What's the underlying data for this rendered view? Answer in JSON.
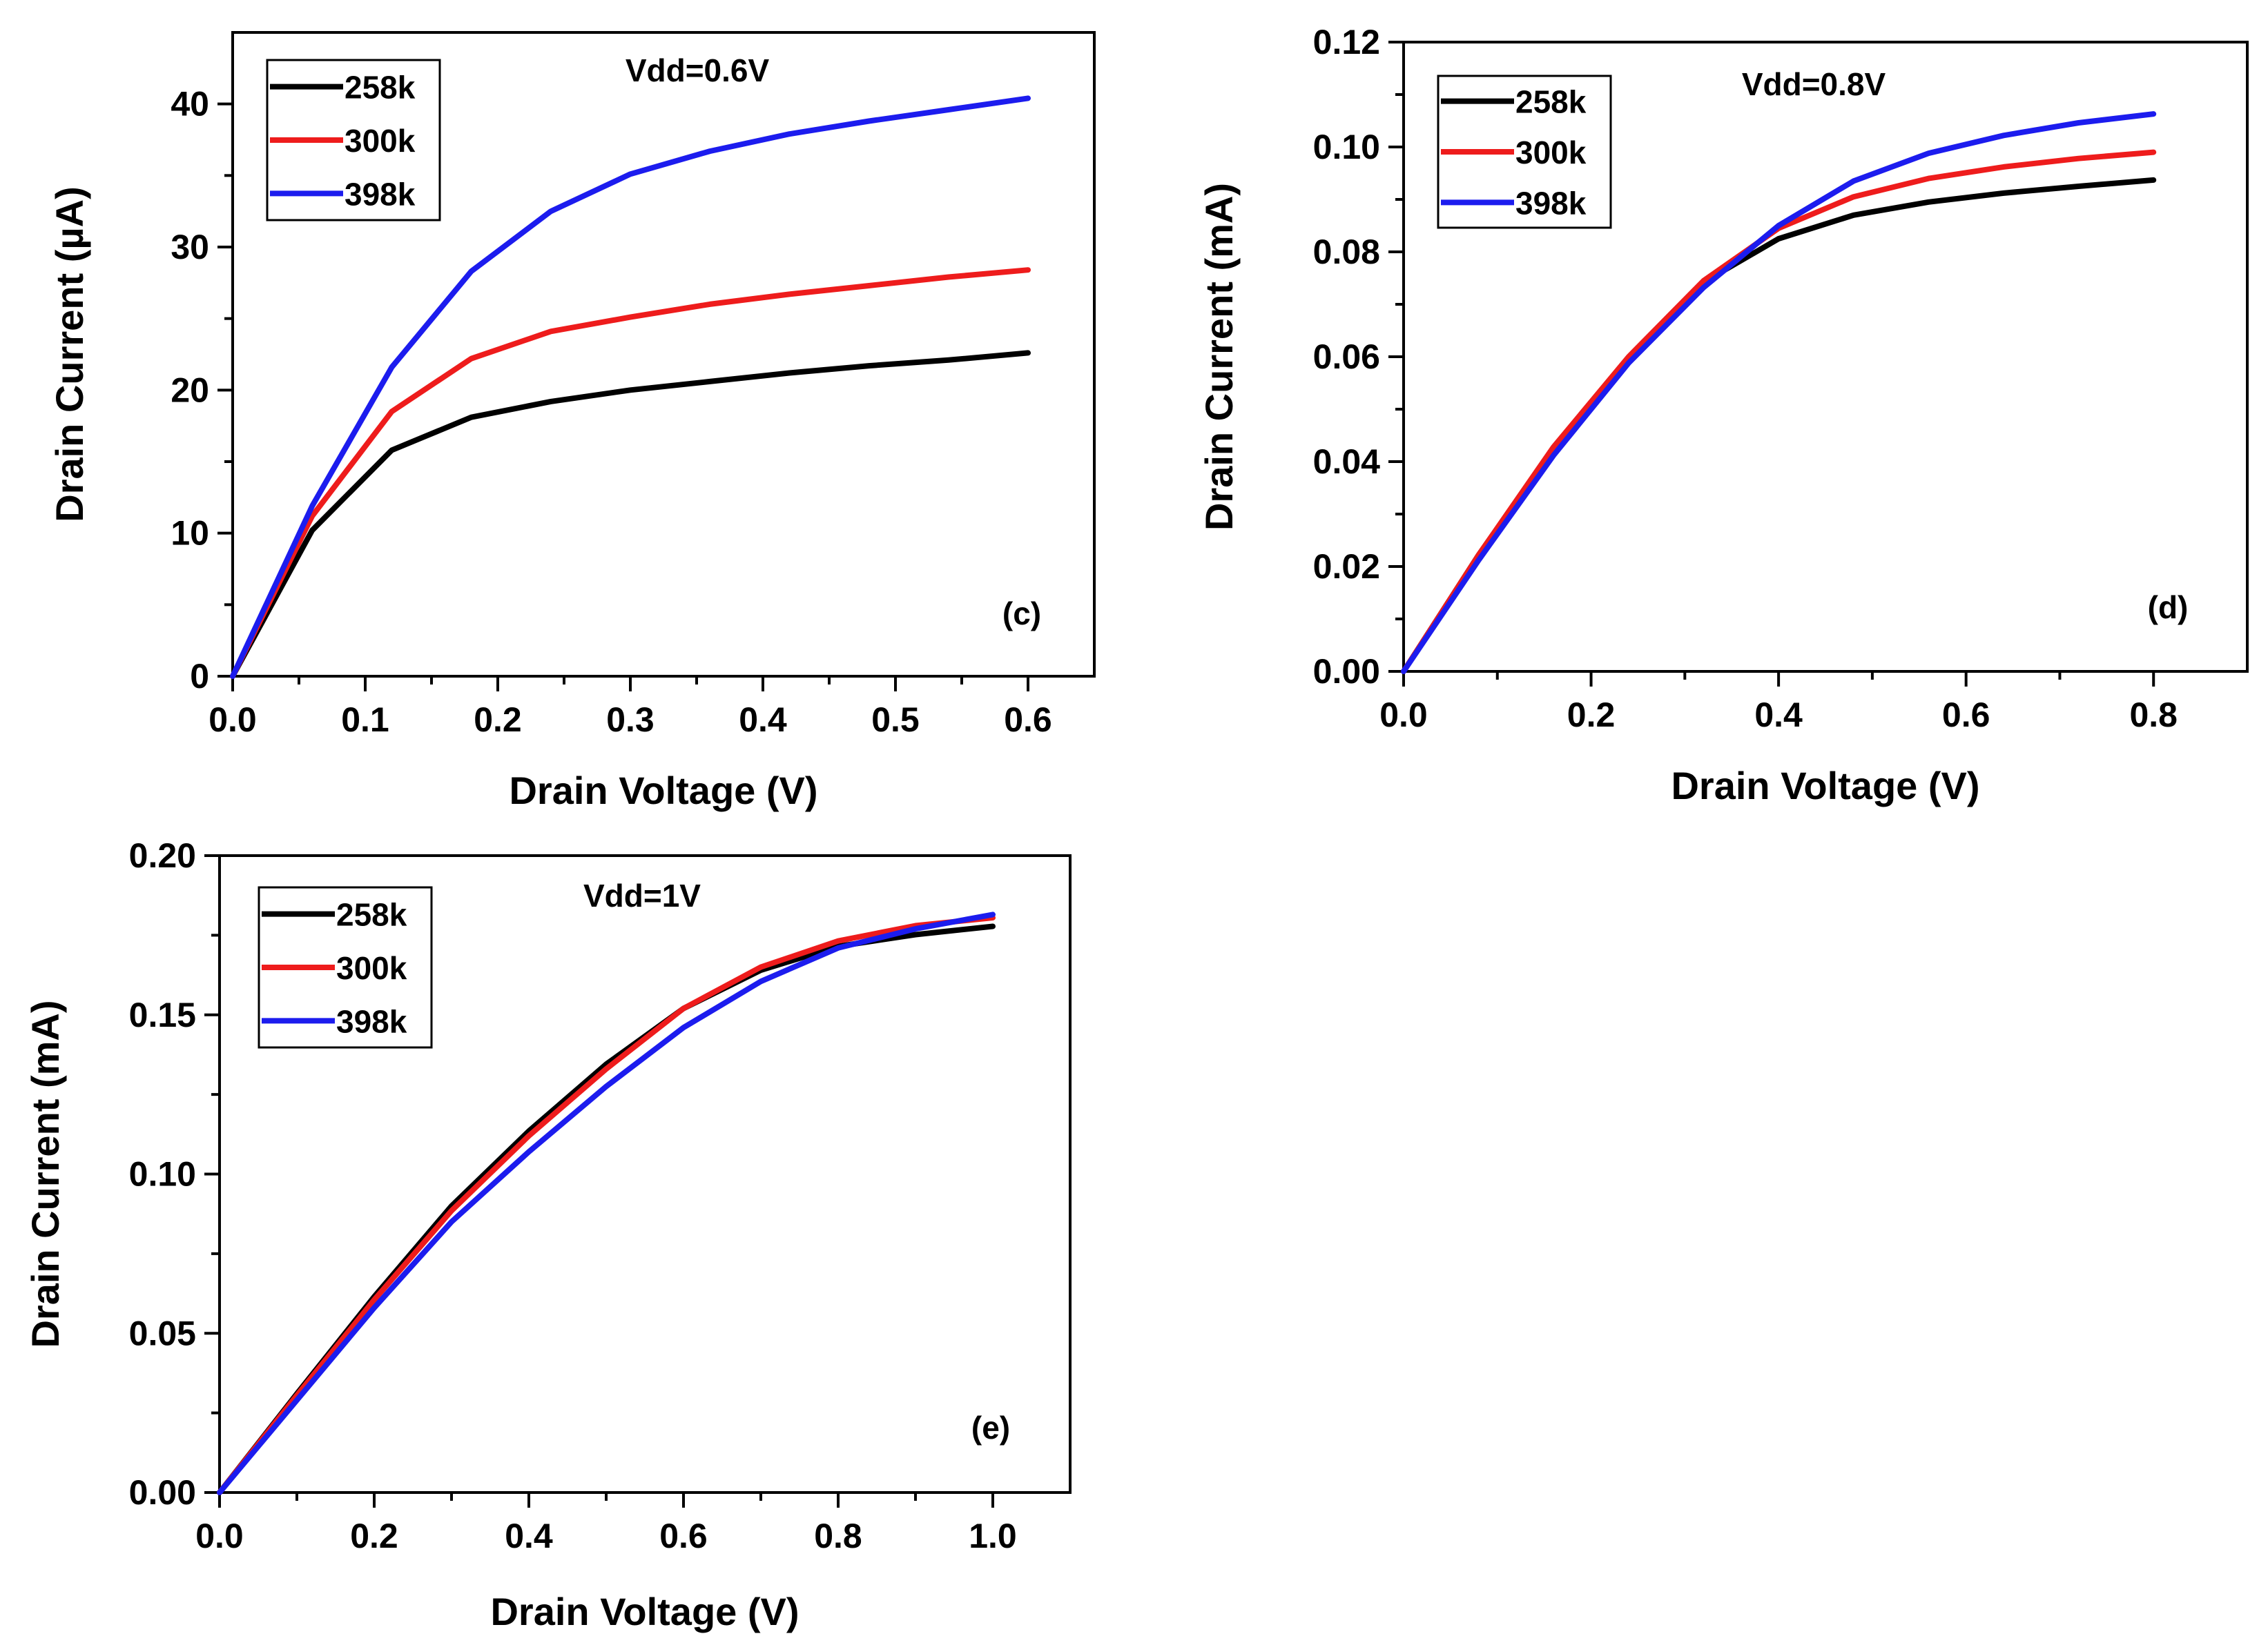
{
  "chart_data": [
    {
      "type": "line",
      "panel_label": "(c)",
      "annotation": "Vdd=0.6V",
      "xlabel": "Drain Voltage (V)",
      "ylabel": "Drain Current (µA)",
      "xlim": [
        0,
        0.65
      ],
      "ylim": [
        0,
        45
      ],
      "xticks": [
        0.0,
        0.1,
        0.2,
        0.3,
        0.4,
        0.5,
        0.6
      ],
      "xtick_labels": [
        "0.0",
        "0.1",
        "0.2",
        "0.3",
        "0.4",
        "0.5",
        "0.6"
      ],
      "yticks": [
        0,
        10,
        20,
        30,
        40
      ],
      "ytick_labels": [
        "0",
        "10",
        "20",
        "30",
        "40"
      ],
      "legend_position": "top-left",
      "grid": false,
      "series": [
        {
          "name": "258k",
          "color": "#000000",
          "x": [
            0,
            0.06,
            0.12,
            0.18,
            0.24,
            0.3,
            0.36,
            0.42,
            0.48,
            0.54,
            0.6
          ],
          "y": [
            0,
            10.2,
            15.8,
            18.1,
            19.2,
            20.0,
            20.6,
            21.2,
            21.7,
            22.1,
            22.6
          ]
        },
        {
          "name": "300k",
          "color": "#ee1c1c",
          "x": [
            0,
            0.06,
            0.12,
            0.18,
            0.24,
            0.3,
            0.36,
            0.42,
            0.48,
            0.54,
            0.6
          ],
          "y": [
            0,
            11.2,
            18.5,
            22.2,
            24.1,
            25.1,
            26.0,
            26.7,
            27.3,
            27.9,
            28.4
          ]
        },
        {
          "name": "398k",
          "color": "#1c1cee",
          "x": [
            0,
            0.06,
            0.12,
            0.18,
            0.24,
            0.3,
            0.36,
            0.42,
            0.48,
            0.54,
            0.6
          ],
          "y": [
            0,
            11.9,
            21.6,
            28.3,
            32.5,
            35.1,
            36.7,
            37.9,
            38.8,
            39.6,
            40.4
          ]
        }
      ]
    },
    {
      "type": "line",
      "panel_label": "(d)",
      "annotation": "Vdd=0.8V",
      "xlabel": "Drain Voltage (V)",
      "ylabel": "Drain Current (mA)",
      "xlim": [
        0,
        0.9
      ],
      "ylim": [
        0,
        0.12
      ],
      "xticks": [
        0.0,
        0.2,
        0.4,
        0.6,
        0.8
      ],
      "xtick_labels": [
        "0.0",
        "0.2",
        "0.4",
        "0.6",
        "0.8"
      ],
      "yticks": [
        0.0,
        0.02,
        0.04,
        0.06,
        0.08,
        0.1,
        0.12
      ],
      "ytick_labels": [
        "0.00",
        "0.02",
        "0.04",
        "0.06",
        "0.08",
        "0.10",
        "0.12"
      ],
      "legend_position": "top-left",
      "grid": false,
      "series": [
        {
          "name": "258k",
          "color": "#000000",
          "x": [
            0,
            0.08,
            0.16,
            0.24,
            0.32,
            0.4,
            0.48,
            0.56,
            0.64,
            0.72,
            0.8
          ],
          "y": [
            0,
            0.0222,
            0.0425,
            0.0598,
            0.0742,
            0.0825,
            0.087,
            0.0895,
            0.0912,
            0.0925,
            0.0937
          ]
        },
        {
          "name": "300k",
          "color": "#ee1c1c",
          "x": [
            0,
            0.08,
            0.16,
            0.24,
            0.32,
            0.4,
            0.48,
            0.56,
            0.64,
            0.72,
            0.8
          ],
          "y": [
            0,
            0.0222,
            0.0428,
            0.06,
            0.0745,
            0.0845,
            0.0905,
            0.094,
            0.0962,
            0.0978,
            0.099
          ]
        },
        {
          "name": "398k",
          "color": "#1c1cee",
          "x": [
            0,
            0.08,
            0.16,
            0.24,
            0.32,
            0.4,
            0.48,
            0.56,
            0.64,
            0.72,
            0.8
          ],
          "y": [
            0,
            0.0212,
            0.0412,
            0.0588,
            0.0732,
            0.085,
            0.0935,
            0.0988,
            0.1022,
            0.1046,
            0.1063
          ]
        }
      ]
    },
    {
      "type": "line",
      "panel_label": "(e)",
      "annotation": "Vdd=1V",
      "xlabel": "Drain Voltage (V)",
      "ylabel": "Drain Current (mA)",
      "xlim": [
        0,
        1.1
      ],
      "ylim": [
        0,
        0.2
      ],
      "xticks": [
        0.0,
        0.2,
        0.4,
        0.6,
        0.8,
        1.0
      ],
      "xtick_labels": [
        "0.0",
        "0.2",
        "0.4",
        "0.6",
        "0.8",
        "1.0"
      ],
      "yticks": [
        0.0,
        0.05,
        0.1,
        0.15,
        0.2
      ],
      "ytick_labels": [
        "0.00",
        "0.05",
        "0.10",
        "0.15",
        "0.20"
      ],
      "legend_position": "top-left",
      "grid": false,
      "series": [
        {
          "name": "258k",
          "color": "#000000",
          "x": [
            0,
            0.1,
            0.2,
            0.3,
            0.4,
            0.5,
            0.6,
            0.7,
            0.8,
            0.9,
            1.0
          ],
          "y": [
            0,
            0.031,
            0.0615,
            0.09,
            0.1135,
            0.1345,
            0.152,
            0.164,
            0.1715,
            0.1752,
            0.1778
          ]
        },
        {
          "name": "300k",
          "color": "#ee1c1c",
          "x": [
            0,
            0.1,
            0.2,
            0.3,
            0.4,
            0.5,
            0.6,
            0.7,
            0.8,
            0.9,
            1.0
          ],
          "y": [
            0,
            0.0305,
            0.0605,
            0.0885,
            0.112,
            0.133,
            0.152,
            0.165,
            0.1732,
            0.178,
            0.1805
          ]
        },
        {
          "name": "398k",
          "color": "#1c1cee",
          "x": [
            0,
            0.1,
            0.2,
            0.3,
            0.4,
            0.5,
            0.6,
            0.7,
            0.8,
            0.9,
            1.0
          ],
          "y": [
            0,
            0.029,
            0.058,
            0.085,
            0.107,
            0.1275,
            0.146,
            0.1605,
            0.171,
            0.177,
            0.1815
          ]
        }
      ]
    }
  ]
}
